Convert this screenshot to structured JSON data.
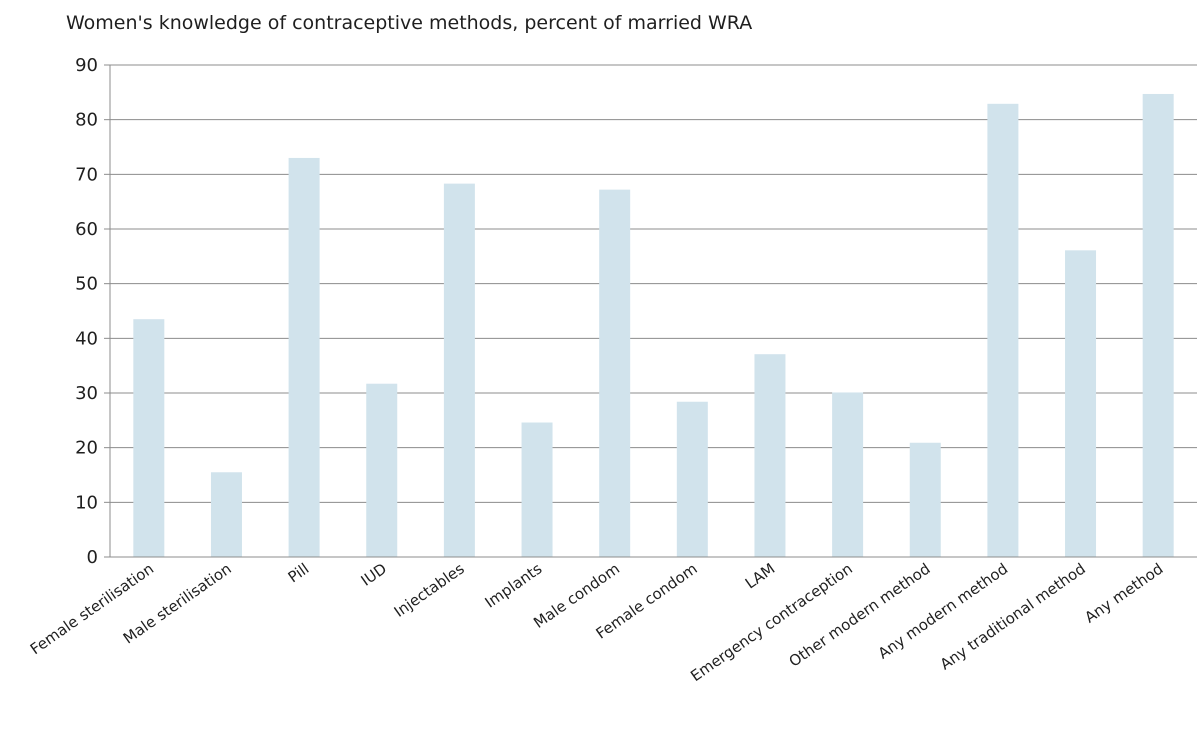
{
  "chart_data": {
    "type": "bar",
    "title": "Women's knowledge of contraceptive methods, percent of married WRA",
    "xlabel": "",
    "ylabel": "",
    "ylim": [
      0,
      90
    ],
    "yticks": [
      0,
      10,
      20,
      30,
      40,
      50,
      60,
      70,
      80,
      90
    ],
    "grid": true,
    "legend": "none",
    "bar_color": "#d1e3ec",
    "grid_color": "#8c8c8c",
    "categories": [
      "Female sterilisation",
      "Male sterilisation",
      "Pill",
      "IUD",
      "Injectables",
      "Implants",
      "Male condom",
      "Female condom",
      "LAM",
      "Emergency contraception",
      "Other modern method",
      "Any modern method",
      "Any traditional method",
      "Any method"
    ],
    "values": [
      43.5,
      15.5,
      73.0,
      31.7,
      68.3,
      24.6,
      67.2,
      28.4,
      37.1,
      30.1,
      20.9,
      82.9,
      56.1,
      84.7
    ]
  }
}
